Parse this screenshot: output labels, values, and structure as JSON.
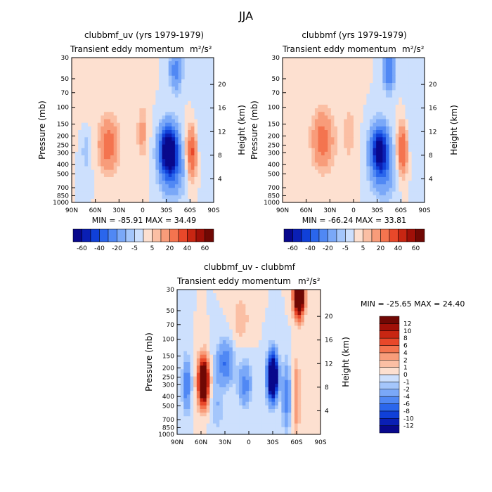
{
  "page_title": "JJA",
  "colors": [
    "#08088c",
    "#0a1fb4",
    "#1040d8",
    "#2a66ec",
    "#5088f4",
    "#7aa8f8",
    "#a4c6fb",
    "#cde0fd",
    "#fde0d0",
    "#fbbfa4",
    "#f89c7a",
    "#f4744f",
    "#e8482a",
    "#c82612",
    "#a01008",
    "#700804"
  ],
  "chart_data": [
    {
      "type": "heatmap",
      "title": "clubbmf_uv (yrs 1979-1979)",
      "subtitle": "Transient eddy momentum",
      "units": "m²/s²",
      "xlabel": "",
      "ylabel": "Pressure (mb)",
      "ylabel_right": "Height (km)",
      "x_ticks": [
        "90N",
        "60N",
        "30N",
        "0",
        "30S",
        "60S",
        "90S"
      ],
      "y_ticks": [
        "30",
        "50",
        "70",
        "100",
        "150",
        "200",
        "250",
        "300",
        "400",
        "500",
        "700",
        "850",
        "1000"
      ],
      "height_ticks": [
        "4",
        "8",
        "12",
        "16",
        "20"
      ],
      "stats": "MIN = -85.91   MAX =  34.49",
      "colorbar": {
        "levels": [
          -70,
          -60,
          -50,
          -40,
          -30,
          -20,
          -10,
          -5,
          0,
          5,
          10,
          20,
          30,
          40,
          50,
          60,
          70
        ],
        "labels": [
          "-60",
          "-40",
          "-20",
          "-5",
          "5",
          "20",
          "40",
          "60"
        ]
      },
      "features": [
        {
          "lat": -33,
          "p": 280,
          "value": -86,
          "lat_width": 11,
          "p_depth": 0.55
        },
        {
          "lat": -42,
          "p": 40,
          "value": -25,
          "lat_width": 8,
          "p_depth": 0.5
        },
        {
          "lat": -38,
          "p": 500,
          "value": -20,
          "lat_width": 15,
          "p_depth": 0.6
        },
        {
          "lat": -62,
          "p": 300,
          "value": 34,
          "lat_width": 6,
          "p_depth": 0.6
        },
        {
          "lat": 44,
          "p": 250,
          "value": 28,
          "lat_width": 11,
          "p_depth": 0.6
        },
        {
          "lat": 0,
          "p": 180,
          "value": 12,
          "lat_width": 6,
          "p_depth": 0.6
        },
        {
          "lat": 72,
          "p": 280,
          "value": -8,
          "lat_width": 6,
          "p_depth": 0.6
        },
        {
          "lat": 20,
          "p": 250,
          "value": 3,
          "lat_width": 20,
          "p_depth": 1.2
        },
        {
          "lat": 70,
          "p": 80,
          "value": 3,
          "lat_width": 15,
          "p_depth": 0.9
        },
        {
          "lat": -75,
          "p": 150,
          "value": -5,
          "lat_width": 10,
          "p_depth": 0.9
        }
      ]
    },
    {
      "type": "heatmap",
      "title": "clubbmf (yrs 1979-1979)",
      "subtitle": "Transient eddy momentum",
      "units": "m²/s²",
      "xlabel": "",
      "ylabel": "Pressure (mb)",
      "ylabel_right": "Height (km)",
      "x_ticks": [
        "90N",
        "60N",
        "30N",
        "0",
        "30S",
        "60S",
        "90S"
      ],
      "y_ticks": [
        "30",
        "50",
        "70",
        "100",
        "150",
        "200",
        "250",
        "300",
        "400",
        "500",
        "700",
        "850",
        "1000"
      ],
      "height_ticks": [
        "4",
        "8",
        "12",
        "16",
        "20"
      ],
      "stats": "MIN = -66.24   MAX =  33.81",
      "colorbar": {
        "levels": [
          -70,
          -60,
          -50,
          -40,
          -30,
          -20,
          -10,
          -5,
          0,
          5,
          10,
          20,
          30,
          40,
          50,
          60,
          70
        ],
        "labels": [
          "-60",
          "-40",
          "-20",
          "-5",
          "5",
          "20",
          "40",
          "60"
        ]
      },
      "features": [
        {
          "lat": -33,
          "p": 280,
          "value": -66,
          "lat_width": 11,
          "p_depth": 0.55
        },
        {
          "lat": -45,
          "p": 40,
          "value": -30,
          "lat_width": 7,
          "p_depth": 0.5
        },
        {
          "lat": -38,
          "p": 500,
          "value": -18,
          "lat_width": 15,
          "p_depth": 0.6
        },
        {
          "lat": -62,
          "p": 280,
          "value": 33,
          "lat_width": 6,
          "p_depth": 0.6
        },
        {
          "lat": 40,
          "p": 220,
          "value": 26,
          "lat_width": 12,
          "p_depth": 0.65
        },
        {
          "lat": 5,
          "p": 180,
          "value": 8,
          "lat_width": 6,
          "p_depth": 0.6
        },
        {
          "lat": 20,
          "p": 250,
          "value": 3,
          "lat_width": 20,
          "p_depth": 1.2
        },
        {
          "lat": 70,
          "p": 80,
          "value": 3,
          "lat_width": 15,
          "p_depth": 0.9
        },
        {
          "lat": -75,
          "p": 150,
          "value": -5,
          "lat_width": 10,
          "p_depth": 0.9
        }
      ]
    },
    {
      "type": "heatmap",
      "title": "clubbmf_uv - clubbmf",
      "subtitle": "Transient eddy momentum",
      "units": "m²/s²",
      "xlabel": "",
      "ylabel": "Pressure (mb)",
      "ylabel_right": "Height (km)",
      "x_ticks": [
        "90N",
        "60N",
        "30N",
        "0",
        "30S",
        "60S",
        "90S"
      ],
      "y_ticks": [
        "30",
        "50",
        "70",
        "100",
        "150",
        "200",
        "250",
        "300",
        "400",
        "500",
        "700",
        "850",
        "1000"
      ],
      "height_ticks": [
        "4",
        "8",
        "12",
        "16",
        "20"
      ],
      "stats": "MIN = -25.65   MAX =  24.40",
      "colorbar": {
        "levels": [
          -14,
          -12,
          -10,
          -8,
          -6,
          -4,
          -2,
          -1,
          0,
          1,
          2,
          4,
          6,
          8,
          10,
          12,
          14
        ],
        "labels": [
          "12",
          "10",
          "8",
          "6",
          "4",
          "2",
          "1",
          "0",
          "-1",
          "-2",
          "-4",
          "-6",
          "-8",
          "-10",
          "-12"
        ]
      },
      "features": [
        {
          "lat": 57,
          "p": 280,
          "value": 24,
          "lat_width": 6,
          "p_depth": 0.5
        },
        {
          "lat": -63,
          "p": 35,
          "value": 24,
          "lat_width": 6,
          "p_depth": 0.45
        },
        {
          "lat": -30,
          "p": 250,
          "value": -25,
          "lat_width": 6,
          "p_depth": 0.5
        },
        {
          "lat": 30,
          "p": 180,
          "value": -6,
          "lat_width": 10,
          "p_depth": 0.5
        },
        {
          "lat": 78,
          "p": 300,
          "value": -6,
          "lat_width": 5,
          "p_depth": 0.6
        },
        {
          "lat": 5,
          "p": 300,
          "value": -5,
          "lat_width": 8,
          "p_depth": 0.5
        },
        {
          "lat": -47,
          "p": 400,
          "value": -5,
          "lat_width": 5,
          "p_depth": 0.8
        },
        {
          "lat": -60,
          "p": 400,
          "value": 4,
          "lat_width": 4,
          "p_depth": 0.8
        },
        {
          "lat": 10,
          "p": 60,
          "value": 2,
          "lat_width": 10,
          "p_depth": 0.5
        },
        {
          "lat": 40,
          "p": 500,
          "value": -2,
          "lat_width": 8,
          "p_depth": 0.6
        }
      ]
    }
  ]
}
